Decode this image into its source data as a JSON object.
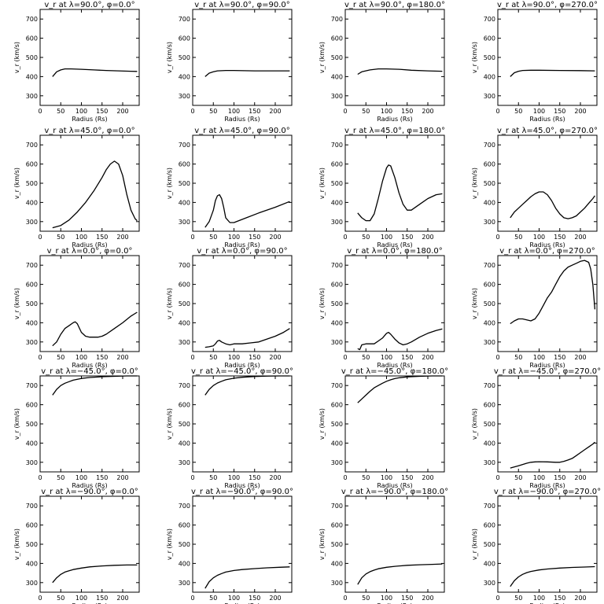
{
  "chart_data": {
    "type": "line",
    "layout_rows": 5,
    "layout_cols": 4,
    "xlabel": "Radius (Rs)",
    "ylabel": "v_r (km/s)",
    "xlim": [
      0,
      240
    ],
    "ylim": [
      250,
      750
    ],
    "xticks": [
      0,
      50,
      100,
      150,
      200
    ],
    "yticks": [
      300,
      400,
      500,
      600,
      700
    ],
    "panels": [
      {
        "title": "v_r at λ=90.0°, φ=0.0°",
        "x": [
          30,
          40,
          50,
          60,
          75,
          100,
          130,
          160,
          190,
          220,
          235
        ],
        "y": [
          400,
          425,
          435,
          440,
          440,
          438,
          435,
          432,
          430,
          428,
          427
        ]
      },
      {
        "title": "v_r at λ=90.0°, φ=90.0°",
        "x": [
          30,
          40,
          50,
          60,
          80,
          100,
          150,
          200,
          235
        ],
        "y": [
          400,
          418,
          425,
          430,
          432,
          432,
          430,
          430,
          430
        ]
      },
      {
        "title": "v_r at λ=90.0°, φ=180.0°",
        "x": [
          30,
          40,
          60,
          80,
          100,
          130,
          160,
          200,
          235
        ],
        "y": [
          412,
          425,
          435,
          440,
          440,
          438,
          433,
          430,
          428
        ]
      },
      {
        "title": "v_r at λ=90.0°, φ=270.0°",
        "x": [
          30,
          40,
          50,
          60,
          80,
          100,
          150,
          200,
          235
        ],
        "y": [
          400,
          420,
          428,
          432,
          433,
          433,
          432,
          431,
          430
        ]
      },
      {
        "title": "v_r at λ=45.0°, φ=0.0°",
        "x": [
          30,
          50,
          70,
          90,
          110,
          130,
          150,
          160,
          170,
          180,
          190,
          200,
          210,
          220,
          230,
          235
        ],
        "y": [
          268,
          280,
          308,
          350,
          400,
          460,
          530,
          570,
          600,
          615,
          600,
          540,
          440,
          360,
          315,
          305
        ]
      },
      {
        "title": "v_r at λ=45.0°, φ=90.0°",
        "x": [
          30,
          40,
          50,
          55,
          60,
          65,
          70,
          75,
          80,
          90,
          100,
          130,
          160,
          200,
          235
        ],
        "y": [
          270,
          300,
          360,
          410,
          435,
          440,
          420,
          375,
          320,
          295,
          295,
          320,
          345,
          375,
          405
        ]
      },
      {
        "title": "v_r at λ=45.0°, φ=180.0°",
        "x": [
          30,
          40,
          50,
          60,
          70,
          80,
          90,
          100,
          105,
          110,
          120,
          130,
          140,
          150,
          160,
          180,
          200,
          220,
          235
        ],
        "y": [
          345,
          320,
          305,
          305,
          340,
          420,
          510,
          580,
          595,
          590,
          530,
          450,
          390,
          360,
          360,
          390,
          420,
          440,
          445
        ]
      },
      {
        "title": "v_r at λ=45.0°, φ=270.0°",
        "x": [
          30,
          40,
          50,
          60,
          70,
          80,
          90,
          100,
          110,
          120,
          130,
          140,
          150,
          160,
          170,
          180,
          190,
          200,
          210,
          220,
          230,
          235
        ],
        "y": [
          320,
          350,
          370,
          390,
          410,
          430,
          445,
          455,
          455,
          440,
          410,
          370,
          340,
          320,
          315,
          320,
          330,
          350,
          370,
          395,
          420,
          435
        ]
      },
      {
        "title": "v_r at λ=0.0°, φ=0.0°",
        "x": [
          30,
          40,
          50,
          60,
          70,
          80,
          85,
          90,
          100,
          110,
          120,
          130,
          140,
          150,
          160,
          180,
          200,
          220,
          235
        ],
        "y": [
          280,
          300,
          340,
          370,
          385,
          400,
          405,
          395,
          350,
          330,
          325,
          325,
          325,
          330,
          340,
          370,
          400,
          435,
          455
        ]
      },
      {
        "title": "v_r at λ=0.0°, φ=90.0°",
        "x": [
          30,
          40,
          50,
          55,
          60,
          65,
          70,
          80,
          90,
          100,
          120,
          140,
          160,
          180,
          200,
          220,
          235
        ],
        "y": [
          272,
          275,
          280,
          290,
          305,
          308,
          300,
          290,
          285,
          290,
          290,
          295,
          300,
          315,
          330,
          350,
          370
        ]
      },
      {
        "title": "v_r at λ=0.0°, φ=180.0°",
        "x": [
          30,
          35,
          40,
          50,
          60,
          70,
          80,
          90,
          100,
          105,
          110,
          120,
          130,
          140,
          150,
          160,
          180,
          200,
          220,
          235
        ],
        "y": [
          265,
          260,
          285,
          290,
          290,
          290,
          305,
          320,
          345,
          350,
          340,
          315,
          295,
          285,
          290,
          300,
          325,
          345,
          360,
          368
        ]
      },
      {
        "title": "v_r at λ=0.0°, φ=270.0°",
        "x": [
          30,
          40,
          50,
          60,
          70,
          80,
          90,
          100,
          110,
          120,
          130,
          140,
          150,
          160,
          170,
          180,
          190,
          200,
          210,
          220,
          225,
          230,
          235
        ],
        "y": [
          395,
          410,
          420,
          420,
          415,
          410,
          420,
          450,
          490,
          530,
          560,
          600,
          640,
          670,
          690,
          700,
          710,
          720,
          725,
          715,
          680,
          600,
          470
        ]
      },
      {
        "title": "v_r at λ=−45.0°, φ=0.0°",
        "x": [
          30,
          40,
          50,
          60,
          70,
          80,
          100,
          120,
          150,
          180,
          210,
          235
        ],
        "y": [
          650,
          680,
          700,
          712,
          720,
          728,
          737,
          742,
          746,
          748,
          750,
          750
        ]
      },
      {
        "title": "v_r at λ=−45.0°, φ=90.0°",
        "x": [
          30,
          40,
          50,
          60,
          70,
          80,
          100,
          120,
          150,
          180,
          210,
          235
        ],
        "y": [
          650,
          680,
          700,
          713,
          722,
          730,
          738,
          743,
          747,
          749,
          750,
          750
        ]
      },
      {
        "title": "v_r at λ=−45.0°, φ=180.0°",
        "x": [
          30,
          40,
          50,
          60,
          70,
          80,
          90,
          100,
          110,
          120,
          130,
          150,
          180,
          210,
          235
        ],
        "y": [
          610,
          630,
          650,
          670,
          688,
          700,
          712,
          722,
          730,
          736,
          740,
          745,
          748,
          750,
          750
        ]
      },
      {
        "title": "v_r at λ=−45.0°, φ=270.0°",
        "x": [
          30,
          50,
          70,
          80,
          90,
          100,
          120,
          140,
          150,
          160,
          170,
          180,
          190,
          200,
          210,
          220,
          230,
          235
        ],
        "y": [
          270,
          282,
          295,
          300,
          302,
          303,
          302,
          300,
          300,
          305,
          312,
          320,
          335,
          350,
          365,
          380,
          395,
          405
        ]
      },
      {
        "title": "v_r at λ=−90.0°, φ=0.0°",
        "x": [
          30,
          40,
          50,
          60,
          70,
          80,
          100,
          120,
          150,
          180,
          210,
          235
        ],
        "y": [
          300,
          325,
          343,
          355,
          362,
          368,
          376,
          382,
          387,
          390,
          392,
          392
        ]
      },
      {
        "title": "v_r at λ=−90.0°, φ=90.0°",
        "x": [
          30,
          40,
          50,
          60,
          70,
          80,
          100,
          120,
          150,
          180,
          210,
          235
        ],
        "y": [
          270,
          305,
          325,
          338,
          347,
          355,
          363,
          368,
          373,
          377,
          380,
          382
        ]
      },
      {
        "title": "v_r at λ=−90.0°, φ=180.0°",
        "x": [
          30,
          40,
          50,
          60,
          70,
          80,
          100,
          120,
          150,
          180,
          210,
          235
        ],
        "y": [
          290,
          325,
          345,
          357,
          365,
          372,
          380,
          385,
          390,
          393,
          395,
          397
        ]
      },
      {
        "title": "v_r at λ=−90.0°, φ=270.0°",
        "x": [
          30,
          40,
          50,
          60,
          70,
          80,
          100,
          120,
          150,
          180,
          210,
          235
        ],
        "y": [
          280,
          310,
          330,
          343,
          352,
          358,
          366,
          371,
          376,
          379,
          381,
          383
        ]
      }
    ]
  }
}
